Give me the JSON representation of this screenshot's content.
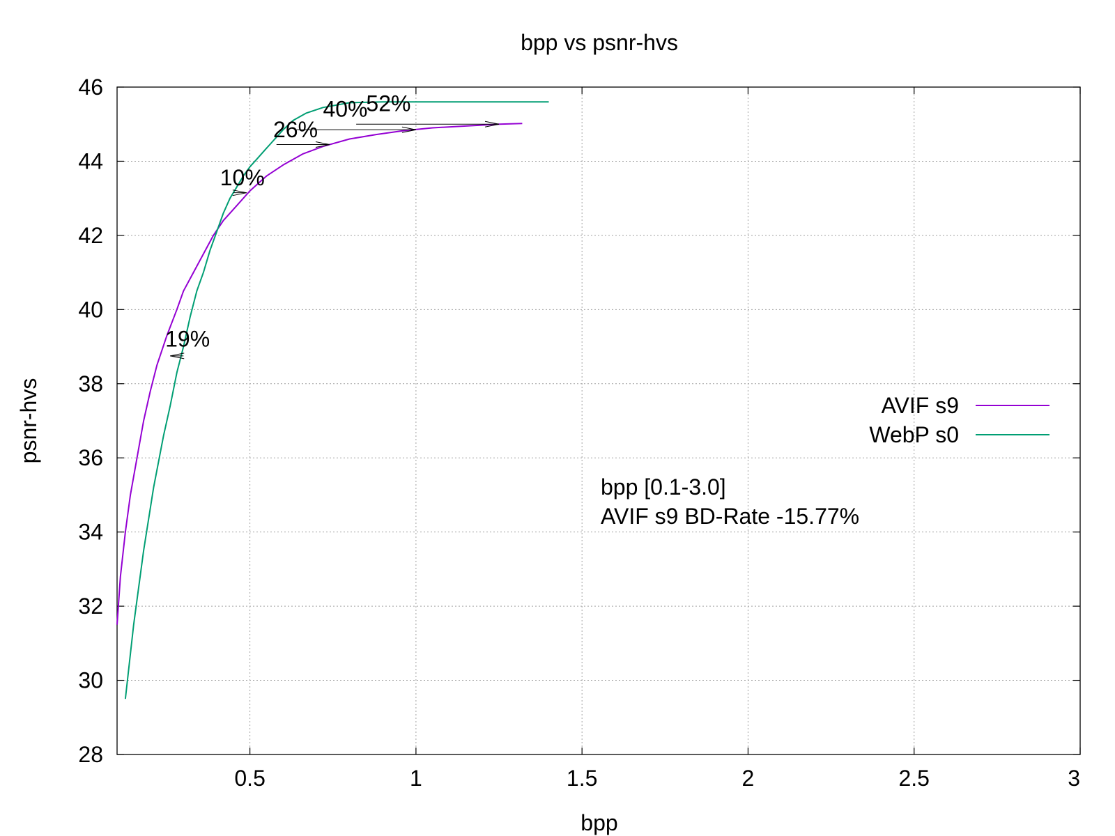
{
  "chart_data": {
    "type": "line",
    "title": "bpp vs psnr-hvs",
    "xlabel": "bpp",
    "ylabel": "psnr-hvs",
    "xlim": [
      0.1,
      3.0
    ],
    "ylim": [
      28,
      46
    ],
    "xticks": [
      0.5,
      1,
      1.5,
      2,
      2.5,
      3
    ],
    "xtick_labels": [
      "0.5",
      "1",
      "1.5",
      "2",
      "2.5",
      "3"
    ],
    "yticks": [
      28,
      30,
      32,
      34,
      36,
      38,
      40,
      42,
      44,
      46
    ],
    "ytick_labels": [
      "28",
      "30",
      "32",
      "34",
      "36",
      "38",
      "40",
      "42",
      "44",
      "46"
    ],
    "grid": true,
    "legend_position": "right",
    "series": [
      {
        "name": "AVIF s9",
        "color": "#9400d3",
        "x": [
          0.1,
          0.11,
          0.125,
          0.14,
          0.16,
          0.18,
          0.2,
          0.22,
          0.25,
          0.28,
          0.3,
          0.33,
          0.36,
          0.39,
          0.42,
          0.46,
          0.5,
          0.55,
          0.6,
          0.66,
          0.72,
          0.8,
          0.88,
          0.96,
          1.05,
          1.15,
          1.25,
          1.32
        ],
        "y": [
          31.5,
          32.8,
          34.0,
          35.0,
          36.0,
          37.0,
          37.8,
          38.5,
          39.3,
          40.0,
          40.5,
          41.0,
          41.5,
          42.0,
          42.4,
          42.8,
          43.2,
          43.6,
          43.9,
          44.2,
          44.4,
          44.6,
          44.72,
          44.82,
          44.9,
          44.95,
          45.0,
          45.02
        ]
      },
      {
        "name": "WebP s0",
        "color": "#009e73",
        "x": [
          0.125,
          0.15,
          0.18,
          0.21,
          0.24,
          0.26,
          0.28,
          0.3,
          0.32,
          0.34,
          0.36,
          0.38,
          0.4,
          0.42,
          0.44,
          0.46,
          0.48,
          0.5,
          0.52,
          0.54,
          0.56,
          0.58,
          0.6,
          0.63,
          0.67,
          0.72,
          0.8,
          0.9,
          1.0,
          1.1,
          1.2,
          1.3,
          1.4
        ],
        "y": [
          29.5,
          31.5,
          33.5,
          35.2,
          36.6,
          37.4,
          38.3,
          39.0,
          39.8,
          40.5,
          41.0,
          41.6,
          42.1,
          42.6,
          43.0,
          43.3,
          43.6,
          43.85,
          44.05,
          44.25,
          44.45,
          44.65,
          44.85,
          45.1,
          45.3,
          45.45,
          45.58,
          45.6,
          45.6,
          45.6,
          45.6,
          45.6,
          45.6
        ]
      }
    ],
    "annotations": [
      {
        "text": "19%",
        "x": 0.245,
        "y": 39.0,
        "arrow_from": [
          0.3,
          38.75
        ],
        "arrow_to": [
          0.26,
          38.75
        ]
      },
      {
        "text": "10%",
        "x": 0.41,
        "y": 43.35,
        "arrow_from": [
          0.45,
          43.15
        ],
        "arrow_to": [
          0.49,
          43.15
        ]
      },
      {
        "text": "26%",
        "x": 0.57,
        "y": 44.65,
        "arrow_from": [
          0.58,
          44.45
        ],
        "arrow_to": [
          0.74,
          44.45
        ]
      },
      {
        "text": "40%",
        "x": 0.72,
        "y": 45.2,
        "arrow_from": [
          0.64,
          44.85
        ],
        "arrow_to": [
          1.0,
          44.85
        ]
      },
      {
        "text": "52%",
        "x": 0.85,
        "y": 45.35,
        "arrow_from": [
          0.82,
          45.0
        ],
        "arrow_to": [
          1.25,
          45.0
        ]
      }
    ],
    "notes": [
      "bpp [0.1-3.0]",
      "AVIF s9 BD-Rate -15.77%"
    ],
    "note_color": "#00ff00"
  }
}
